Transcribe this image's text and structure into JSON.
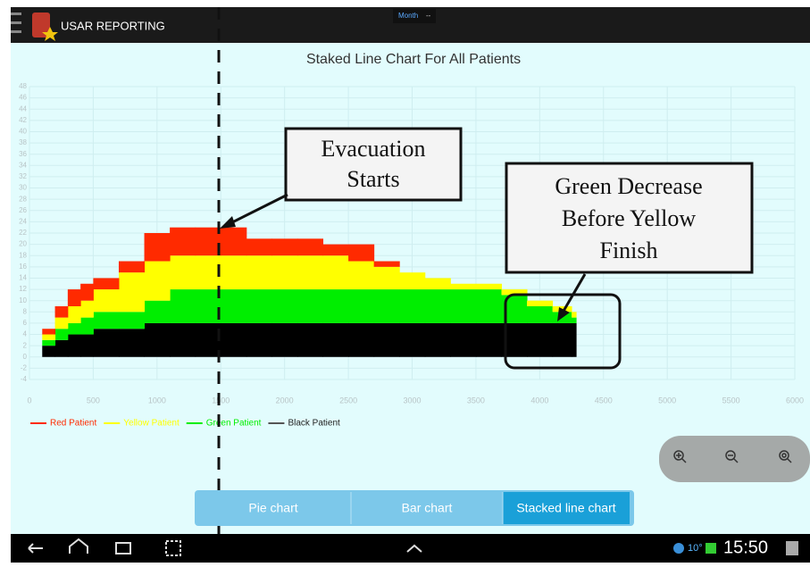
{
  "header": {
    "app_title": "USAR REPORTING",
    "period": "Month"
  },
  "chart_data": {
    "type": "stacked_area",
    "title": "Staked Line Chart For All Patients",
    "x": [
      0,
      100,
      200,
      300,
      400,
      500,
      700,
      900,
      1100,
      1300,
      1500,
      1700,
      1900,
      2100,
      2300,
      2500,
      2700,
      2900,
      3100,
      3300,
      3500,
      3700,
      3900,
      4100,
      4250
    ],
    "series": [
      {
        "name": "Red Patient",
        "color": "#ff2a00",
        "values": [
          0,
          1,
          2,
          3,
          3,
          2,
          2,
          5,
          5,
          5,
          5,
          3,
          3,
          3,
          2,
          3,
          1,
          0,
          0,
          0,
          0,
          0,
          0,
          0,
          0
        ]
      },
      {
        "name": "Yellow Patient",
        "color": "#ffff00",
        "values": [
          0,
          1,
          2,
          3,
          3,
          4,
          7,
          7,
          6,
          6,
          6,
          6,
          6,
          6,
          6,
          5,
          4,
          3,
          2,
          1,
          1,
          1,
          1,
          1,
          1
        ]
      },
      {
        "name": "Green Patient",
        "color": "#00ee00",
        "values": [
          0,
          1,
          2,
          2,
          3,
          3,
          3,
          4,
          6,
          6,
          6,
          6,
          6,
          6,
          6,
          6,
          6,
          6,
          6,
          6,
          6,
          5,
          3,
          2,
          1
        ]
      },
      {
        "name": "Black Patient",
        "color": "#000000",
        "values": [
          0,
          2,
          3,
          4,
          4,
          5,
          5,
          6,
          6,
          6,
          6,
          6,
          6,
          6,
          6,
          6,
          6,
          6,
          6,
          6,
          6,
          6,
          6,
          6,
          6
        ]
      }
    ],
    "xlim": [
      0,
      6000
    ],
    "xticks": [
      0,
      500,
      1000,
      1500,
      2000,
      2500,
      3000,
      3500,
      4000,
      4500,
      5000,
      5500,
      6000
    ],
    "ylim": [
      -4,
      48
    ],
    "yticks": [
      -4,
      -2,
      0,
      2,
      4,
      6,
      8,
      10,
      12,
      14,
      16,
      18,
      20,
      22,
      24,
      26,
      28,
      30,
      32,
      34,
      36,
      38,
      40,
      42,
      44,
      46,
      48
    ],
    "grid": true
  },
  "annotations": [
    {
      "lines": [
        "Evacuation",
        "Starts"
      ]
    },
    {
      "lines": [
        "Green Decrease",
        "Before Yellow",
        "Finish"
      ]
    }
  ],
  "tabs": [
    "Pie chart",
    "Bar chart",
    "Stacked line chart"
  ],
  "status_bar": {
    "temperature": "10°",
    "time": "15:50"
  }
}
